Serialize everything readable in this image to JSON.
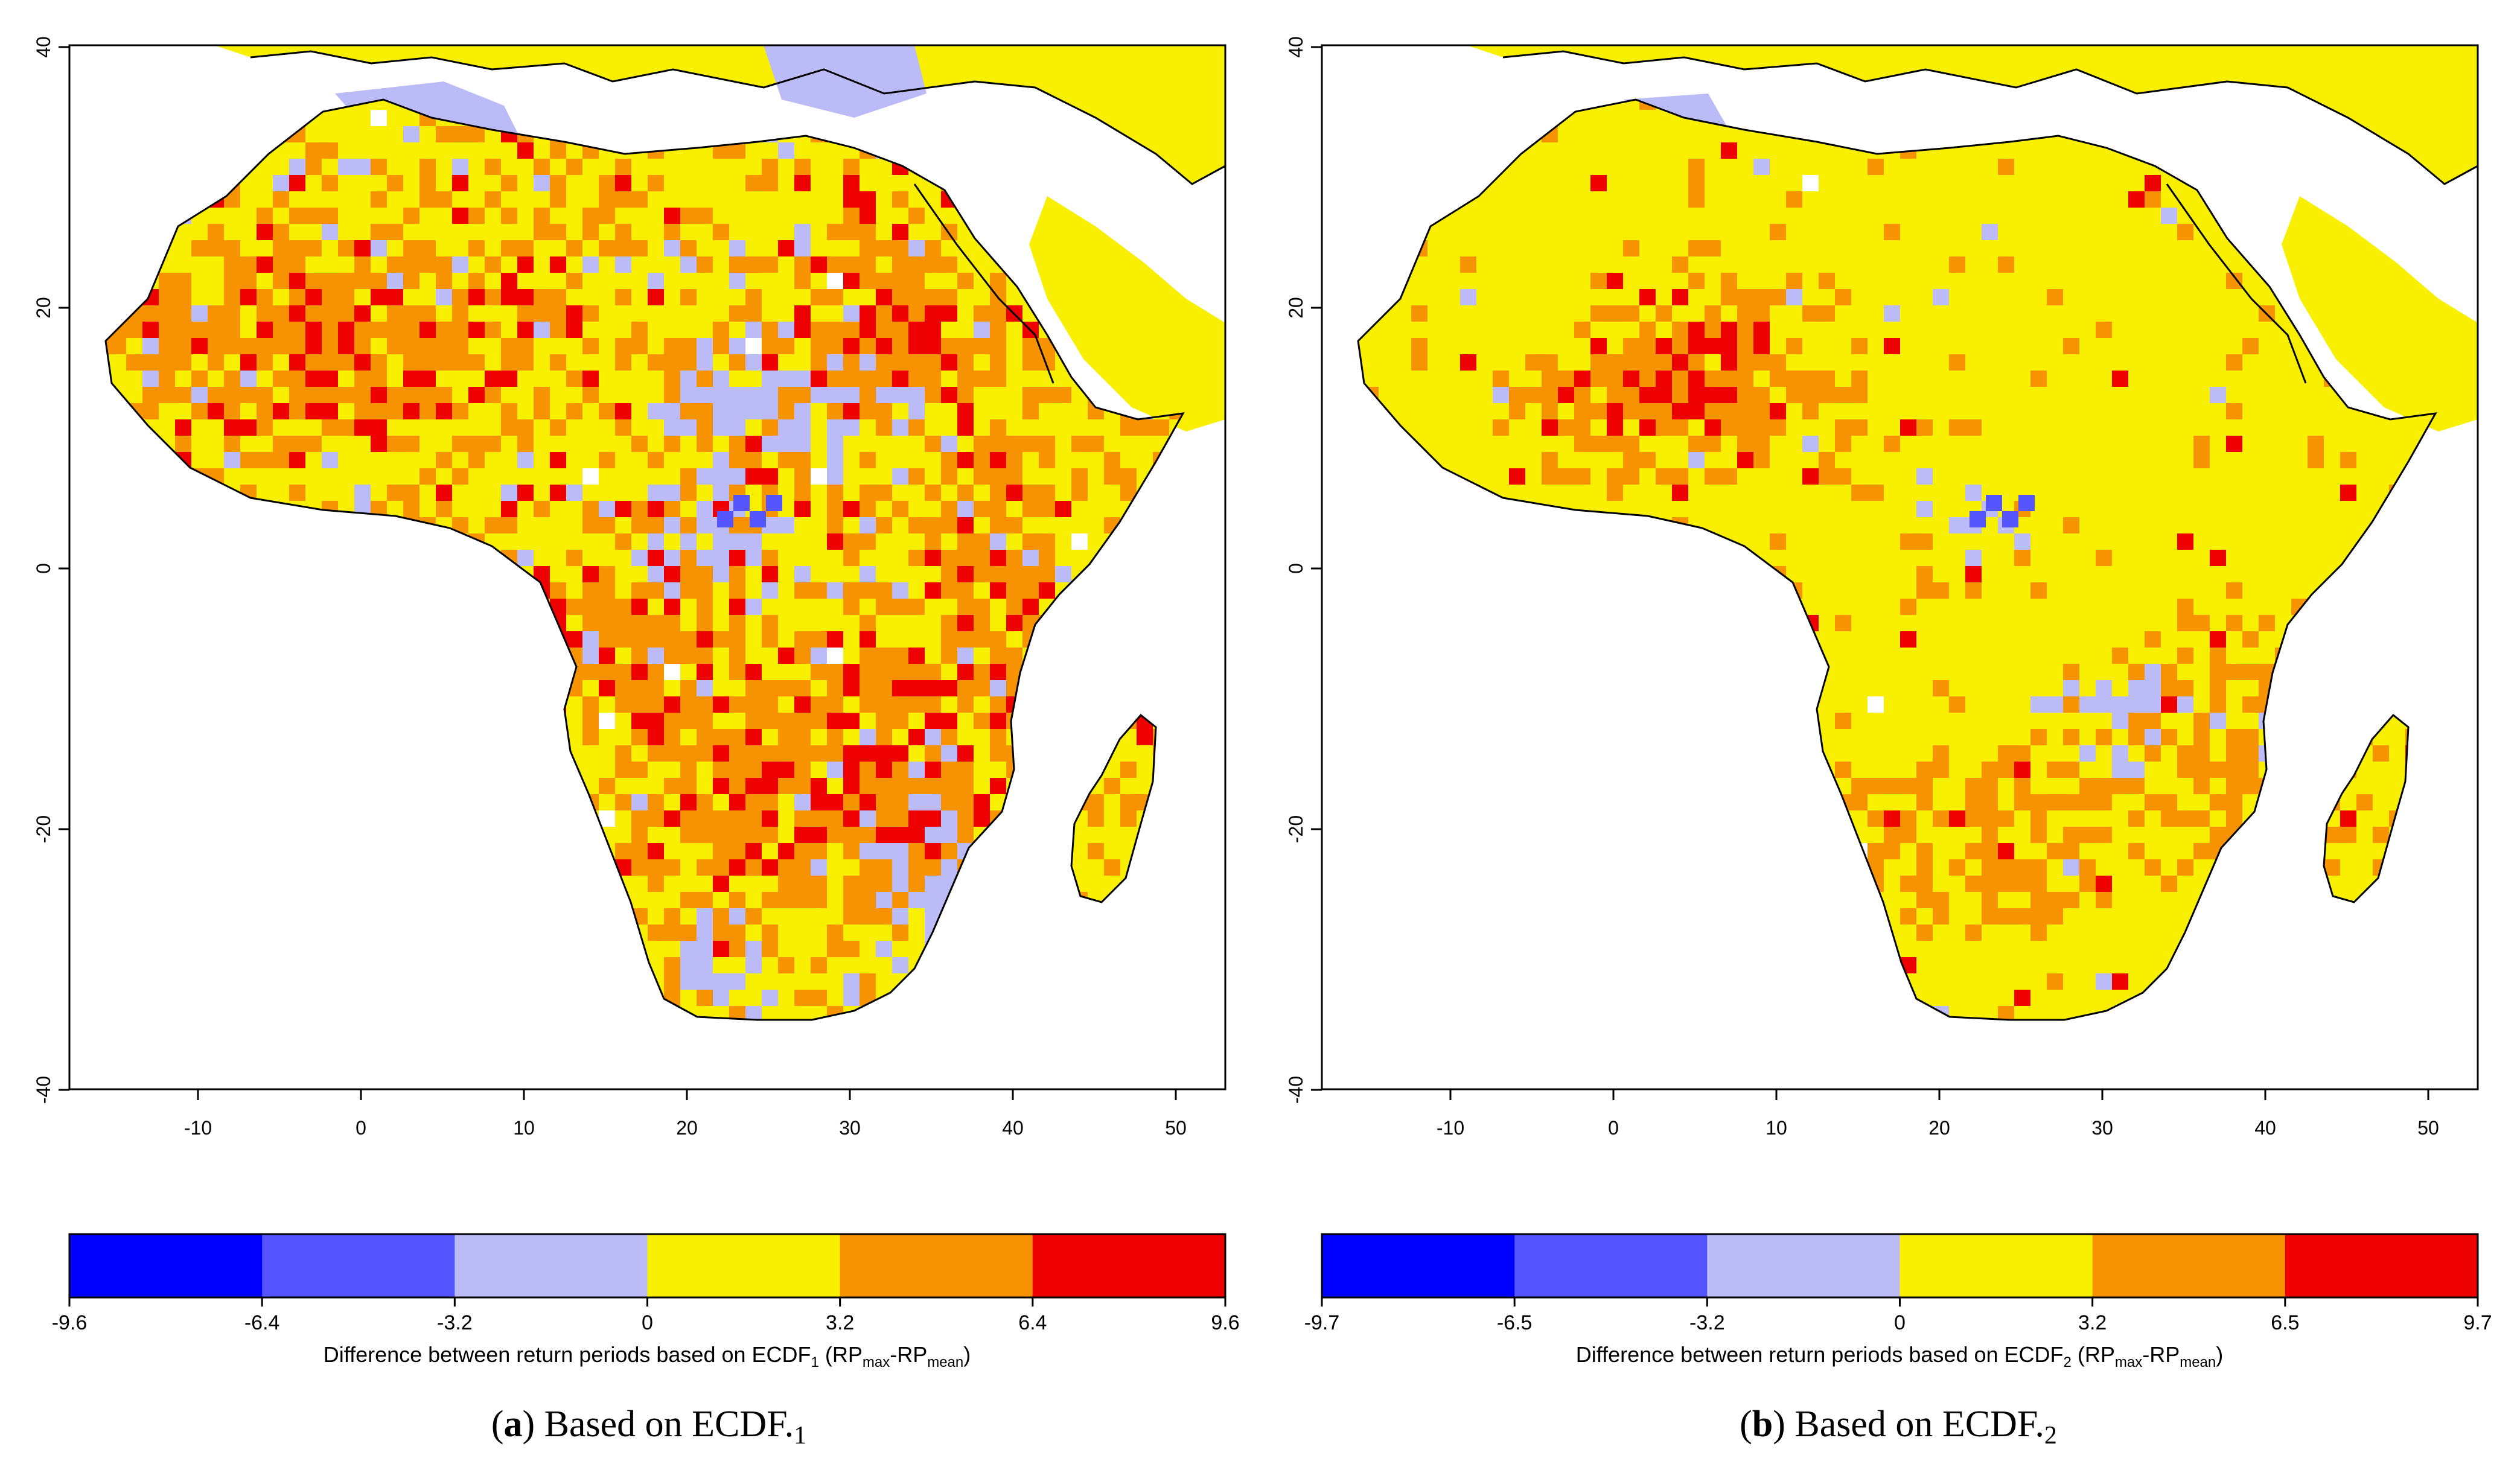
{
  "panels": [
    {
      "id": "a",
      "caption": {
        "letter": "a",
        "text": "Based on ECDF.",
        "subscript": "1"
      },
      "colorbar": {
        "breaks": [
          "-9.6",
          "-6.4",
          "-3.2",
          "0",
          "3.2",
          "6.4",
          "9.6"
        ],
        "colors": [
          "#0000ff",
          "#5555ff",
          "#bbbbf7",
          "#f8f000",
          "#f79200",
          "#ee0000"
        ],
        "title_prefix": "Difference between return periods based on ECDF",
        "title_sub": "1",
        "title_mid": " (RP",
        "title_sub_max": "max",
        "title_dash": "-RP",
        "title_sub_mean": "mean",
        "title_end": ")"
      }
    },
    {
      "id": "b",
      "caption": {
        "letter": "b",
        "text": "Based on ECDF.",
        "subscript": "2"
      },
      "colorbar": {
        "breaks": [
          "-9.7",
          "-6.5",
          "-3.2",
          "0",
          "3.2",
          "6.5",
          "9.7"
        ],
        "colors": [
          "#0000ff",
          "#5555ff",
          "#bbbbf7",
          "#f8f000",
          "#f79200",
          "#ee0000"
        ],
        "title_prefix": "Difference between return periods based on ECDF",
        "title_sub": "2",
        "title_mid": " (RP",
        "title_sub_max": "max",
        "title_dash": "-RP",
        "title_sub_mean": "mean",
        "title_end": ")"
      }
    }
  ],
  "axes": {
    "x_ticks": [
      "-10",
      "0",
      "10",
      "20",
      "30",
      "40",
      "50"
    ],
    "y_ticks": [
      "40",
      "20",
      "0",
      "-20",
      "-40"
    ]
  },
  "colors": {
    "yellow": "#f8f000",
    "orange": "#f79200",
    "red": "#ee0000",
    "lavender": "#bbbbf7",
    "blue": "#5555ff",
    "coast": "#000000"
  }
}
